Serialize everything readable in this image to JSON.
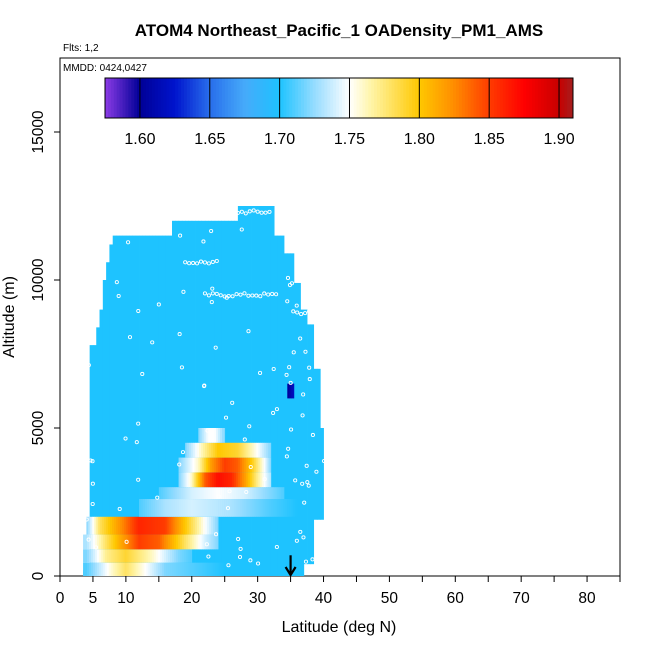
{
  "chart_data": {
    "type": "heatmap",
    "title": "ATOM4 Northeast_Pacific_1 OADensity_PM1_AMS",
    "flights_note": "Flts: 1,2",
    "dates_note": "MMDD: 0424,0427",
    "xlabel": "Latitude (deg N)",
    "ylabel": "Altitude (m)",
    "xlim": [
      0,
      85
    ],
    "ylim": [
      0,
      17500
    ],
    "x_ticks": [
      "0",
      "5",
      "10",
      "20",
      "30",
      "40",
      "50",
      "60",
      "70",
      "80"
    ],
    "y_ticks": [
      "0",
      "5000",
      "10000",
      "15000"
    ],
    "colorbar": {
      "min": 1.575,
      "max": 1.91,
      "ticks": [
        "1.60",
        "1.65",
        "1.70",
        "1.75",
        "1.80",
        "1.85",
        "1.90"
      ]
    },
    "background_value": 1.7,
    "coverage_profile": [
      {
        "lat_min": 3.5,
        "lat_max": 4.5,
        "alt_max": 200
      },
      {
        "lat_min": 4.5,
        "lat_max": 5.5,
        "alt_max": 7800
      },
      {
        "lat_min": 5.5,
        "lat_max": 6.0,
        "alt_max": 8400
      },
      {
        "lat_min": 6.0,
        "lat_max": 6.5,
        "alt_max": 9000
      },
      {
        "lat_min": 6.5,
        "lat_max": 7.0,
        "alt_max": 10000
      },
      {
        "lat_min": 7.0,
        "lat_max": 7.5,
        "alt_max": 10600
      },
      {
        "lat_min": 7.5,
        "lat_max": 8.0,
        "alt_max": 11200
      },
      {
        "lat_min": 8.0,
        "lat_max": 17.0,
        "alt_max": 11500
      },
      {
        "lat_min": 17.0,
        "lat_max": 27.0,
        "alt_max": 12000
      },
      {
        "lat_min": 27.0,
        "lat_max": 32.5,
        "alt_max": 12500
      },
      {
        "lat_min": 32.5,
        "lat_max": 34.0,
        "alt_max": 11500
      },
      {
        "lat_min": 34.0,
        "lat_max": 35.5,
        "alt_max": 10900
      },
      {
        "lat_min": 35.5,
        "lat_max": 36.5,
        "alt_max": 9900
      },
      {
        "lat_min": 36.5,
        "lat_max": 37.5,
        "alt_max": 9000
      },
      {
        "lat_min": 37.5,
        "lat_max": 38.5,
        "alt_max": 8500
      },
      {
        "lat_min": 38.5,
        "lat_max": 39.5,
        "alt_max": 7000
      },
      {
        "lat_min": 39.5,
        "lat_max": 40.0,
        "alt_max": 5000
      }
    ],
    "bottom_cutoff": [
      {
        "lat_min": 37.0,
        "lat_max": 38.5,
        "alt_min": 400
      },
      {
        "lat_min": 38.5,
        "lat_max": 40.0,
        "alt_min": 1900
      }
    ],
    "enhanced_layers": [
      {
        "lat_min": 3.5,
        "lat_max": 25.0,
        "alt_min": 0,
        "alt_max": 450,
        "profile": [
          {
            "lat": 4,
            "value": 1.71
          },
          {
            "lat": 8,
            "value": 1.76
          },
          {
            "lat": 10,
            "value": 1.78
          },
          {
            "lat": 12,
            "value": 1.76
          },
          {
            "lat": 16,
            "value": 1.72
          },
          {
            "lat": 25,
            "value": 1.7
          }
        ]
      },
      {
        "lat_min": 3.5,
        "lat_max": 20.0,
        "alt_min": 450,
        "alt_max": 900,
        "profile": [
          {
            "lat": 4,
            "value": 1.72
          },
          {
            "lat": 7,
            "value": 1.77
          },
          {
            "lat": 10,
            "value": 1.79
          },
          {
            "lat": 14,
            "value": 1.76
          },
          {
            "lat": 18,
            "value": 1.72
          },
          {
            "lat": 20,
            "value": 1.71
          }
        ]
      },
      {
        "lat_min": 3.5,
        "lat_max": 24.0,
        "alt_min": 900,
        "alt_max": 1400,
        "profile": [
          {
            "lat": 4,
            "value": 1.73
          },
          {
            "lat": 7,
            "value": 1.78
          },
          {
            "lat": 9,
            "value": 1.81
          },
          {
            "lat": 12,
            "value": 1.85
          },
          {
            "lat": 15,
            "value": 1.84
          },
          {
            "lat": 19,
            "value": 1.78
          },
          {
            "lat": 22,
            "value": 1.74
          },
          {
            "lat": 24,
            "value": 1.72
          }
        ]
      },
      {
        "lat_min": 4.0,
        "lat_max": 24.0,
        "alt_min": 1400,
        "alt_max": 2000,
        "profile": [
          {
            "lat": 4,
            "value": 1.72
          },
          {
            "lat": 6,
            "value": 1.78
          },
          {
            "lat": 9,
            "value": 1.82
          },
          {
            "lat": 12,
            "value": 1.86
          },
          {
            "lat": 16,
            "value": 1.85
          },
          {
            "lat": 19,
            "value": 1.8
          },
          {
            "lat": 22,
            "value": 1.75
          },
          {
            "lat": 24,
            "value": 1.72
          }
        ]
      },
      {
        "lat_min": 12.0,
        "lat_max": 36.0,
        "alt_min": 2000,
        "alt_max": 2600,
        "profile": [
          {
            "lat": 12,
            "value": 1.71
          },
          {
            "lat": 16,
            "value": 1.73
          },
          {
            "lat": 20,
            "value": 1.74
          },
          {
            "lat": 26,
            "value": 1.73
          },
          {
            "lat": 32,
            "value": 1.71
          },
          {
            "lat": 36,
            "value": 1.7
          }
        ]
      },
      {
        "lat_min": 15.0,
        "lat_max": 34.0,
        "alt_min": 2600,
        "alt_max": 3000,
        "profile": [
          {
            "lat": 15,
            "value": 1.71
          },
          {
            "lat": 20,
            "value": 1.74
          },
          {
            "lat": 24,
            "value": 1.75
          },
          {
            "lat": 28,
            "value": 1.74
          },
          {
            "lat": 32,
            "value": 1.72
          },
          {
            "lat": 34,
            "value": 1.71
          }
        ]
      },
      {
        "lat_min": 18.0,
        "lat_max": 32.0,
        "alt_min": 3000,
        "alt_max": 3500,
        "profile": [
          {
            "lat": 18,
            "value": 1.72
          },
          {
            "lat": 20,
            "value": 1.76
          },
          {
            "lat": 22,
            "value": 1.84
          },
          {
            "lat": 24,
            "value": 1.87
          },
          {
            "lat": 26,
            "value": 1.86
          },
          {
            "lat": 28,
            "value": 1.82
          },
          {
            "lat": 30,
            "value": 1.77
          },
          {
            "lat": 32,
            "value": 1.73
          }
        ]
      },
      {
        "lat_min": 18.0,
        "lat_max": 32.0,
        "alt_min": 3500,
        "alt_max": 4000,
        "profile": [
          {
            "lat": 18,
            "value": 1.72
          },
          {
            "lat": 21,
            "value": 1.76
          },
          {
            "lat": 23,
            "value": 1.82
          },
          {
            "lat": 25,
            "value": 1.85
          },
          {
            "lat": 27,
            "value": 1.84
          },
          {
            "lat": 29,
            "value": 1.8
          },
          {
            "lat": 31,
            "value": 1.75
          },
          {
            "lat": 32,
            "value": 1.72
          }
        ]
      },
      {
        "lat_min": 19.0,
        "lat_max": 32.0,
        "alt_min": 4000,
        "alt_max": 4500,
        "profile": [
          {
            "lat": 19,
            "value": 1.72
          },
          {
            "lat": 22,
            "value": 1.77
          },
          {
            "lat": 24,
            "value": 1.8
          },
          {
            "lat": 27,
            "value": 1.79
          },
          {
            "lat": 30,
            "value": 1.75
          },
          {
            "lat": 32,
            "value": 1.72
          }
        ]
      },
      {
        "lat_min": 21.0,
        "lat_max": 25.0,
        "alt_min": 4500,
        "alt_max": 5000,
        "profile": [
          {
            "lat": 21,
            "value": 1.72
          },
          {
            "lat": 22.5,
            "value": 1.75
          },
          {
            "lat": 23.5,
            "value": 1.75
          },
          {
            "lat": 25,
            "value": 1.72
          }
        ]
      },
      {
        "lat_min": 34.5,
        "lat_max": 35.5,
        "alt_min": 6000,
        "alt_max": 6500,
        "profile": [
          {
            "lat": 34.5,
            "value": 1.6
          },
          {
            "lat": 35.5,
            "value": 1.62
          }
        ]
      }
    ],
    "sample_point_lats": [
      4.5,
      5.2,
      9,
      10.5,
      12,
      14.5,
      18.5,
      22,
      23.5,
      25.8,
      27.5,
      28.5,
      30.5,
      32.5,
      34.5,
      35.2,
      35.8,
      36.5,
      37.2,
      37.8,
      38.5,
      39.5
    ],
    "flight_levels": [
      {
        "lat_min": 19,
        "lat_max": 24,
        "alt": 10600
      },
      {
        "lat_min": 22,
        "lat_max": 33,
        "alt": 9500
      },
      {
        "lat_min": 27,
        "lat_max": 32,
        "alt": 12300
      },
      {
        "lat_min": 36,
        "lat_max": 38,
        "alt": 8900
      }
    ],
    "marker_arrow": {
      "lat": 35,
      "alt_top": 700,
      "alt_bottom": 0
    }
  }
}
